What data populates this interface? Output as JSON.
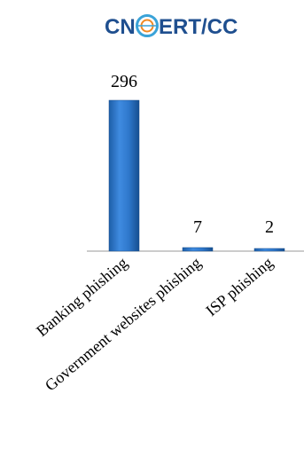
{
  "logo": {
    "prefix": "CN",
    "suffix": "ERT/CC",
    "text_color": "#1f4f8f",
    "globe_color": "#3aa3d8"
  },
  "chart_data": {
    "type": "bar",
    "categories": [
      "Banking phishing",
      "Government websites phishing",
      "ISP phishing"
    ],
    "values": [
      296,
      7,
      2
    ],
    "data_labels": [
      "296",
      "7",
      "2"
    ],
    "title": "",
    "xlabel": "",
    "ylabel": "",
    "ylim": [
      0,
      296
    ],
    "grid": false,
    "legend": "none",
    "bar_color": "#2e75c9"
  }
}
